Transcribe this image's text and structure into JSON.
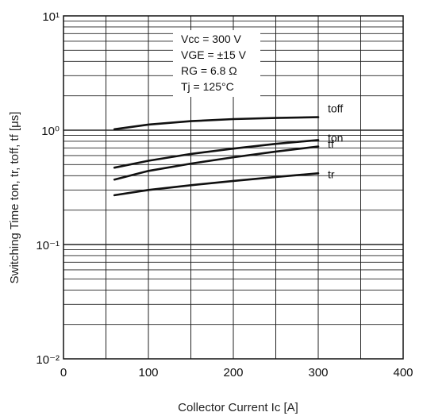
{
  "chart_data": {
    "type": "line",
    "x_scale": "linear",
    "y_scale": "log",
    "xlabel": "Collector Current Ic [A]",
    "ylabel": "Switching Time ton, tr, toff, tf [μs]",
    "xlim": [
      0,
      400
    ],
    "ylim": [
      0.01,
      10
    ],
    "x_ticks": [
      0,
      100,
      200,
      300,
      400
    ],
    "x_tick_labels": [
      "0",
      "100",
      "200",
      "300",
      "400"
    ],
    "y_ticks": [
      0.01,
      0.1,
      1,
      10
    ],
    "y_tick_labels": [
      "10⁻²",
      "10⁻¹",
      "10⁰",
      "10¹"
    ],
    "grid": true,
    "conditions": [
      "Vcc = 300 V",
      "VGE = ±15  V",
      "RG = 6.8 Ω",
      "Tj  = 125°C"
    ],
    "series": [
      {
        "name": "toff",
        "x": [
          60,
          100,
          150,
          200,
          250,
          300
        ],
        "y": [
          1.02,
          1.12,
          1.2,
          1.25,
          1.28,
          1.3
        ]
      },
      {
        "name": "ton",
        "x": [
          60,
          100,
          150,
          200,
          250,
          300
        ],
        "y": [
          0.47,
          0.54,
          0.62,
          0.69,
          0.76,
          0.82
        ]
      },
      {
        "name": "tf",
        "x": [
          60,
          100,
          150,
          200,
          250,
          300
        ],
        "y": [
          0.37,
          0.44,
          0.51,
          0.58,
          0.65,
          0.72
        ]
      },
      {
        "name": "tr",
        "x": [
          60,
          100,
          150,
          200,
          250,
          300
        ],
        "y": [
          0.27,
          0.3,
          0.33,
          0.36,
          0.39,
          0.42
        ]
      }
    ]
  }
}
